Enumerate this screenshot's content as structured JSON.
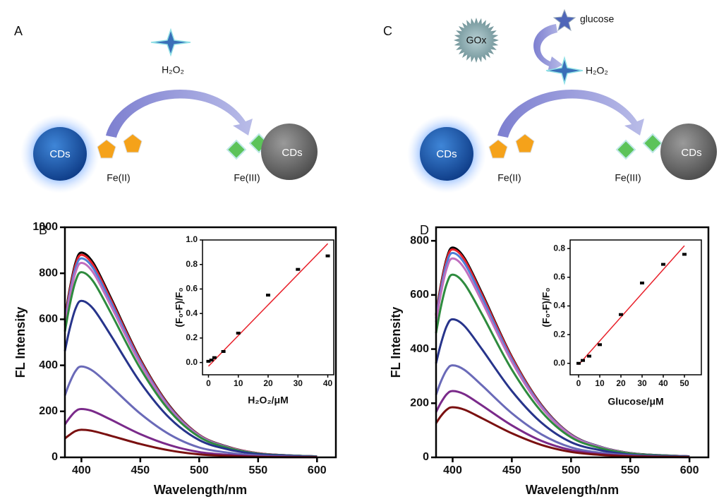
{
  "diagrams": [
    {
      "panel_label": "A",
      "oxidant": "H₂O₂",
      "cds_left": "CDs",
      "cds_right": "CDs",
      "reactant": "Fe(II)",
      "product": "Fe(III)"
    },
    {
      "panel_label": "C",
      "substrate": "glucose",
      "enzyme": "GOx",
      "oxidant": "H₂O₂",
      "cds_left": "CDs",
      "cds_right": "CDs",
      "reactant": "Fe(II)",
      "product": "Fe(III)"
    }
  ],
  "chart_data": [
    {
      "type": "line",
      "panel_label": "B",
      "xlabel": "Wavelength/nm",
      "ylabel": "FL Intensity",
      "x": [
        386,
        390,
        395,
        400,
        410,
        425,
        450,
        475,
        500,
        525,
        550,
        575,
        600
      ],
      "xlim": [
        386,
        616
      ],
      "xticks": [
        400,
        450,
        500,
        550,
        600
      ],
      "ylim": [
        0,
        1000
      ],
      "yticks": [
        0,
        200,
        400,
        600,
        800,
        1000
      ],
      "series": [
        {
          "color": "#000000",
          "values": [
            605,
            730,
            846,
            890,
            846,
            694,
            427,
            223,
            98,
            45,
            18,
            9,
            4
          ]
        },
        {
          "color": "#e8202a",
          "values": [
            598,
            722,
            836,
            880,
            836,
            686,
            422,
            220,
            97,
            44,
            18,
            9,
            4
          ]
        },
        {
          "color": "#4f7fd6",
          "values": [
            588,
            709,
            822,
            865,
            822,
            675,
            415,
            216,
            95,
            43,
            17,
            9,
            4
          ]
        },
        {
          "color": "#c06fbf",
          "values": [
            575,
            693,
            803,
            845,
            803,
            659,
            406,
            211,
            93,
            42,
            17,
            8,
            4
          ]
        },
        {
          "color": "#2e8b3e",
          "values": [
            547,
            660,
            765,
            805,
            765,
            628,
            386,
            201,
            89,
            40,
            16,
            8,
            4
          ]
        },
        {
          "color": "#27348b",
          "values": [
            462,
            558,
            646,
            680,
            646,
            530,
            326,
            170,
            75,
            34,
            14,
            7,
            3
          ]
        },
        {
          "color": "#6a6ab8",
          "values": [
            269,
            324,
            375,
            395,
            375,
            308,
            190,
            99,
            43,
            20,
            8,
            4,
            2
          ]
        },
        {
          "color": "#7a2a8a",
          "values": [
            143,
            172,
            200,
            210,
            200,
            164,
            101,
            53,
            23,
            11,
            4,
            2,
            1
          ]
        },
        {
          "color": "#7a1010",
          "values": [
            82,
            98,
            114,
            120,
            114,
            94,
            58,
            30,
            13,
            6,
            2,
            1,
            1
          ]
        }
      ]
    },
    {
      "type": "scatter",
      "xlabel": "H₂O₂/μM",
      "ylabel": "(F₀-F)/F₀",
      "x": [
        0,
        1,
        2,
        5,
        10,
        20,
        30,
        40
      ],
      "values": [
        0.01,
        0.02,
        0.04,
        0.09,
        0.24,
        0.55,
        0.76,
        0.87
      ],
      "color": "#000000",
      "fit": {
        "x": [
          0,
          40
        ],
        "y": [
          -0.03,
          0.97
        ],
        "color": "#e8202a"
      },
      "xlim": [
        -2,
        42
      ],
      "xticks": [
        0,
        10,
        20,
        30,
        40
      ],
      "ylim": [
        -0.1,
        1.0
      ],
      "yticks": [
        {
          "value": 0,
          "label": "0.0"
        },
        0.2,
        0.4,
        0.6,
        0.8,
        {
          "value": 1,
          "label": "1.0"
        }
      ]
    },
    {
      "type": "line",
      "panel_label": "D",
      "xlabel": "Wavelength/nm",
      "ylabel": "FL Intensity",
      "x": [
        386,
        390,
        395,
        400,
        410,
        425,
        450,
        475,
        500,
        525,
        550,
        575,
        600
      ],
      "xlim": [
        386,
        616
      ],
      "xticks": [
        400,
        450,
        500,
        550,
        600
      ],
      "ylim": [
        0,
        850
      ],
      "yticks": [
        0,
        200,
        400,
        600,
        800
      ],
      "series": [
        {
          "color": "#000000",
          "values": [
            527,
            636,
            736,
            775,
            736,
            605,
            372,
            194,
            85,
            39,
            16,
            8,
            4
          ]
        },
        {
          "color": "#e8202a",
          "values": [
            522,
            630,
            730,
            768,
            730,
            599,
            369,
            192,
            84,
            38,
            15,
            8,
            4
          ]
        },
        {
          "color": "#4f7fd6",
          "values": [
            513,
            619,
            717,
            755,
            717,
            589,
            362,
            189,
            83,
            38,
            15,
            8,
            4
          ]
        },
        {
          "color": "#c06fbf",
          "values": [
            500,
            603,
            698,
            735,
            698,
            573,
            353,
            184,
            81,
            37,
            15,
            7,
            4
          ]
        },
        {
          "color": "#2e8b3e",
          "values": [
            459,
            554,
            641,
            675,
            641,
            527,
            324,
            169,
            74,
            34,
            14,
            7,
            3
          ]
        },
        {
          "color": "#27348b",
          "values": [
            347,
            418,
            485,
            510,
            485,
            398,
            245,
            128,
            56,
            26,
            10,
            5,
            3
          ]
        },
        {
          "color": "#6a6ab8",
          "values": [
            231,
            279,
            323,
            340,
            323,
            265,
            163,
            85,
            37,
            17,
            7,
            3,
            2
          ]
        },
        {
          "color": "#7a2a8a",
          "values": [
            167,
            201,
            233,
            245,
            233,
            191,
            118,
            61,
            27,
            12,
            5,
            2,
            1
          ]
        },
        {
          "color": "#7a1010",
          "values": [
            126,
            152,
            176,
            185,
            176,
            144,
            89,
            46,
            20,
            9,
            4,
            2,
            1
          ]
        }
      ]
    },
    {
      "type": "scatter",
      "xlabel": "Glucose/μM",
      "ylabel": "(F₀-F)/F₀",
      "x": [
        0,
        2,
        5,
        10,
        20,
        30,
        40,
        50
      ],
      "values": [
        0.0,
        0.02,
        0.05,
        0.13,
        0.34,
        0.56,
        0.69,
        0.76
      ],
      "color": "#000000",
      "fit": {
        "x": [
          0,
          50
        ],
        "y": [
          -0.01,
          0.82
        ],
        "color": "#e8202a"
      },
      "xlim": [
        -4,
        58
      ],
      "xticks": [
        0,
        10,
        20,
        30,
        40,
        50
      ],
      "ylim": [
        -0.08,
        0.86
      ],
      "yticks": [
        {
          "value": 0,
          "label": "0.0"
        },
        0.2,
        0.4,
        0.6,
        0.8
      ]
    }
  ]
}
